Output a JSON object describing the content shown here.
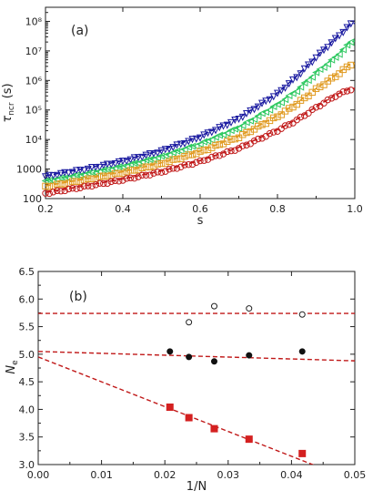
{
  "chart_data": [
    {
      "panel_label": "(a)",
      "type": "scatter",
      "xlabel": "s",
      "ylabel": "τ_ncr (s)",
      "xlim": [
        0.2,
        1.0
      ],
      "ylim": [
        100,
        300000000
      ],
      "yscale": "log",
      "xticks": [
        "0.2",
        "0.4",
        "0.6",
        "0.8",
        "1.0"
      ],
      "yticks": [
        {
          "value": 100,
          "label": "100"
        },
        {
          "value": 1000,
          "label": "1000"
        },
        {
          "value": 10000,
          "label": "10⁴"
        },
        {
          "value": 100000,
          "label": "10⁵"
        },
        {
          "value": 1000000,
          "label": "10⁶"
        },
        {
          "value": 10000000,
          "label": "10⁷"
        },
        {
          "value": 100000000,
          "label": "10⁸"
        }
      ],
      "grid": false,
      "series": [
        {
          "color": "#1a1aa0",
          "marker": "triangle-down",
          "fit_line": "dashed",
          "anchors": [
            [
              0.2,
              550
            ],
            [
              0.3,
              950
            ],
            [
              0.4,
              1800
            ],
            [
              0.5,
              4000
            ],
            [
              0.6,
              12000
            ],
            [
              0.7,
              50000
            ],
            [
              0.8,
              350000
            ],
            [
              0.85,
              1300000
            ],
            [
              0.9,
              6000000
            ],
            [
              0.95,
              25000000
            ],
            [
              0.98,
              60000000
            ],
            [
              0.99,
              80000000
            ]
          ]
        },
        {
          "color": "#2ec860",
          "marker": "triangle-left",
          "fit_line": "dashed",
          "anchors": [
            [
              0.2,
              380
            ],
            [
              0.3,
              650
            ],
            [
              0.4,
              1200
            ],
            [
              0.5,
              2600
            ],
            [
              0.6,
              7000
            ],
            [
              0.7,
              25000
            ],
            [
              0.8,
              150000
            ],
            [
              0.85,
              450000
            ],
            [
              0.9,
              1800000
            ],
            [
              0.95,
              6000000
            ],
            [
              0.98,
              15000000
            ],
            [
              0.99,
              20000000
            ]
          ]
        },
        {
          "color": "#e09a20",
          "marker": "square",
          "fit_line": "dashed",
          "anchors": [
            [
              0.2,
              250
            ],
            [
              0.3,
              420
            ],
            [
              0.4,
              750
            ],
            [
              0.5,
              1500
            ],
            [
              0.6,
              3800
            ],
            [
              0.7,
              12000
            ],
            [
              0.8,
              60000
            ],
            [
              0.85,
              160000
            ],
            [
              0.9,
              500000
            ],
            [
              0.95,
              1400000
            ],
            [
              0.98,
              2800000
            ],
            [
              0.99,
              3500000
            ]
          ]
        },
        {
          "color": "#c01818",
          "marker": "circle",
          "fit_line": "dashed",
          "anchors": [
            [
              0.2,
              150
            ],
            [
              0.3,
              250
            ],
            [
              0.4,
              430
            ],
            [
              0.5,
              800
            ],
            [
              0.6,
              1800
            ],
            [
              0.7,
              5000
            ],
            [
              0.8,
              20000
            ],
            [
              0.85,
              45000
            ],
            [
              0.9,
              120000
            ],
            [
              0.95,
              300000
            ],
            [
              0.98,
              450000
            ],
            [
              0.99,
              500000
            ]
          ]
        }
      ]
    },
    {
      "panel_label": "(b)",
      "type": "scatter",
      "xlabel": "1/N",
      "ylabel": "N_e",
      "xlim": [
        0.0,
        0.05
      ],
      "ylim": [
        3.0,
        6.5
      ],
      "xticks": [
        "0.00",
        "0.01",
        "0.02",
        "0.03",
        "0.04",
        "0.05"
      ],
      "yticks": [
        "3.0",
        "3.5",
        "4.0",
        "4.5",
        "5.0",
        "5.5",
        "6.0",
        "6.5"
      ],
      "grid": false,
      "series": [
        {
          "marker": "open-circle",
          "color": "#222222",
          "x": [
            0.0238,
            0.0278,
            0.0333,
            0.0417
          ],
          "y": [
            5.58,
            5.87,
            5.83,
            5.72
          ],
          "fit": {
            "color": "#c01818",
            "style": "dashed",
            "x": [
              0.0,
              0.05
            ],
            "y": [
              5.74,
              5.74
            ]
          }
        },
        {
          "marker": "filled-circle",
          "color": "#111111",
          "x": [
            0.0208,
            0.0238,
            0.0278,
            0.0333,
            0.0417
          ],
          "y": [
            5.05,
            4.95,
            4.87,
            4.98,
            5.05
          ],
          "fit": {
            "color": "#c01818",
            "style": "dashed",
            "x": [
              0.0,
              0.05
            ],
            "y": [
              5.05,
              4.88
            ]
          }
        },
        {
          "marker": "filled-square",
          "color": "#d42020",
          "x": [
            0.0208,
            0.0238,
            0.0278,
            0.0333,
            0.0417
          ],
          "y": [
            4.04,
            3.85,
            3.65,
            3.46,
            3.2
          ],
          "fit": {
            "color": "#c01818",
            "style": "dashed",
            "x": [
              0.0,
              0.05
            ],
            "y": [
              4.95,
              2.7
            ]
          }
        }
      ]
    }
  ]
}
